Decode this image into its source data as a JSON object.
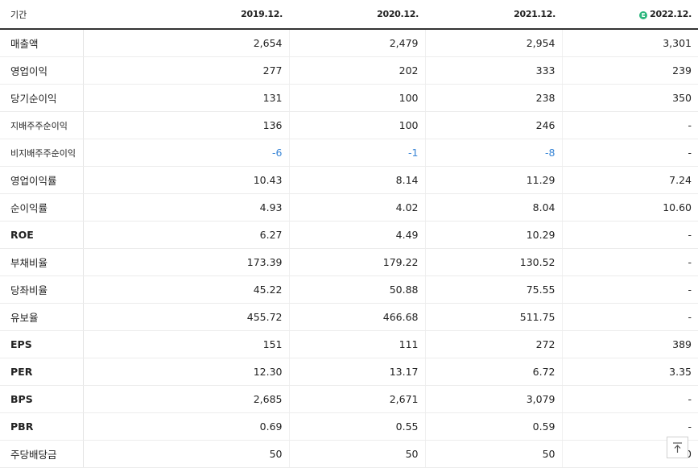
{
  "table": {
    "header": {
      "period_label": "기간",
      "years": [
        "2019.12.",
        "2020.12.",
        "2021.12.",
        "2022.12."
      ],
      "estimate_badge": "E"
    },
    "rows": [
      {
        "label": "매출액",
        "values": [
          "2,654",
          "2,479",
          "2,954",
          "3,301"
        ]
      },
      {
        "label": "영업이익",
        "values": [
          "277",
          "202",
          "333",
          "239"
        ]
      },
      {
        "label": "당기순이익",
        "values": [
          "131",
          "100",
          "238",
          "350"
        ]
      },
      {
        "label": "지배주주순이익",
        "values": [
          "136",
          "100",
          "246",
          "-"
        ]
      },
      {
        "label": "비지배주주순이익",
        "values": [
          "-6",
          "-1",
          "-8",
          "-"
        ]
      },
      {
        "label": "영업이익률",
        "values": [
          "10.43",
          "8.14",
          "11.29",
          "7.24"
        ]
      },
      {
        "label": "순이익률",
        "values": [
          "4.93",
          "4.02",
          "8.04",
          "10.60"
        ]
      },
      {
        "label": "ROE",
        "values": [
          "6.27",
          "4.49",
          "10.29",
          "-"
        ]
      },
      {
        "label": "부채비율",
        "values": [
          "173.39",
          "179.22",
          "130.52",
          "-"
        ]
      },
      {
        "label": "당좌비율",
        "values": [
          "45.22",
          "50.88",
          "75.55",
          "-"
        ]
      },
      {
        "label": "유보율",
        "values": [
          "455.72",
          "466.68",
          "511.75",
          "-"
        ]
      },
      {
        "label": "EPS",
        "values": [
          "151",
          "111",
          "272",
          "389"
        ]
      },
      {
        "label": "PER",
        "values": [
          "12.30",
          "13.17",
          "6.72",
          "3.35"
        ]
      },
      {
        "label": "BPS",
        "values": [
          "2,685",
          "2,671",
          "3,079",
          "-"
        ]
      },
      {
        "label": "PBR",
        "values": [
          "0.69",
          "0.55",
          "0.59",
          "-"
        ]
      },
      {
        "label": "주당배당금",
        "values": [
          "50",
          "50",
          "50",
          "0"
        ]
      }
    ]
  },
  "scroll_top_icon": "arrow-up-to-line-icon",
  "colors": {
    "negative": "#3a86d6",
    "estimate_badge": "#2cb67d"
  }
}
